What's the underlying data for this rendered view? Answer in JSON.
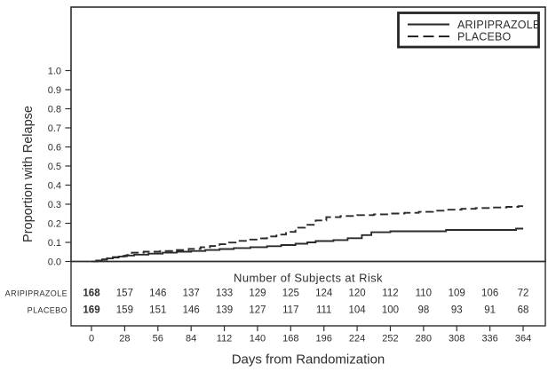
{
  "chart_data": {
    "type": "line",
    "subtype": "kaplan-meier-step",
    "title": "",
    "xlabel": "Days from Randomization",
    "ylabel": "Proportion with Relapse",
    "xlim": [
      0,
      364
    ],
    "ylim": [
      0.0,
      1.0
    ],
    "grid": false,
    "line_color": "#2b2b2b",
    "x_ticks": [
      0,
      28,
      56,
      84,
      112,
      140,
      168,
      196,
      224,
      252,
      280,
      308,
      336,
      364
    ],
    "y_ticks": [
      "1.0",
      "0.9",
      "0.8",
      "0.7",
      "0.6",
      "0.5",
      "0.4",
      "0.3",
      "0.2",
      "0.1",
      "0.0"
    ],
    "legend": {
      "position": "top-right",
      "entries": [
        "ARIPIPRAZOLE",
        "PLACEBO"
      ]
    },
    "series": [
      {
        "name": "ARIPIPRAZOLE",
        "line_style": "solid",
        "color": "#2b2b2b",
        "points": [
          [
            0,
            0
          ],
          [
            5,
            0.005
          ],
          [
            9,
            0.01
          ],
          [
            13,
            0.016
          ],
          [
            18,
            0.021
          ],
          [
            23,
            0.026
          ],
          [
            28,
            0.031
          ],
          [
            36,
            0.036
          ],
          [
            48,
            0.041
          ],
          [
            60,
            0.046
          ],
          [
            72,
            0.051
          ],
          [
            84,
            0.055
          ],
          [
            96,
            0.06
          ],
          [
            108,
            0.065
          ],
          [
            120,
            0.07
          ],
          [
            134,
            0.075
          ],
          [
            148,
            0.08
          ],
          [
            160,
            0.086
          ],
          [
            172,
            0.093
          ],
          [
            182,
            0.1
          ],
          [
            189,
            0.107
          ],
          [
            204,
            0.112
          ],
          [
            216,
            0.122
          ],
          [
            228,
            0.138
          ],
          [
            236,
            0.153
          ],
          [
            252,
            0.158
          ],
          [
            299,
            0.165
          ],
          [
            358,
            0.172
          ]
        ]
      },
      {
        "name": "PLACEBO",
        "line_style": "dashed",
        "color": "#2b2b2b",
        "points": [
          [
            0,
            0
          ],
          [
            4,
            0.005
          ],
          [
            8,
            0.011
          ],
          [
            13,
            0.017
          ],
          [
            18,
            0.023
          ],
          [
            24,
            0.028
          ],
          [
            30,
            0.034
          ],
          [
            34,
            0.046
          ],
          [
            44,
            0.051
          ],
          [
            58,
            0.055
          ],
          [
            72,
            0.06
          ],
          [
            82,
            0.066
          ],
          [
            92,
            0.075
          ],
          [
            100,
            0.081
          ],
          [
            108,
            0.09
          ],
          [
            116,
            0.099
          ],
          [
            124,
            0.108
          ],
          [
            132,
            0.115
          ],
          [
            140,
            0.121
          ],
          [
            148,
            0.131
          ],
          [
            156,
            0.141
          ],
          [
            164,
            0.155
          ],
          [
            172,
            0.177
          ],
          [
            180,
            0.192
          ],
          [
            189,
            0.215
          ],
          [
            198,
            0.232
          ],
          [
            210,
            0.238
          ],
          [
            224,
            0.243
          ],
          [
            238,
            0.247
          ],
          [
            252,
            0.251
          ],
          [
            264,
            0.255
          ],
          [
            276,
            0.26
          ],
          [
            288,
            0.266
          ],
          [
            300,
            0.271
          ],
          [
            312,
            0.276
          ],
          [
            324,
            0.28
          ],
          [
            336,
            0.283
          ],
          [
            350,
            0.286
          ],
          [
            360,
            0.29
          ]
        ]
      }
    ],
    "risk_table": {
      "title": "Number of Subjects at Risk",
      "rows": [
        {
          "label": "ARIPIPRAZOLE",
          "values": [
            168,
            157,
            146,
            137,
            133,
            129,
            125,
            124,
            120,
            112,
            110,
            109,
            106,
            72
          ]
        },
        {
          "label": "PLACEBO",
          "values": [
            169,
            159,
            151,
            146,
            139,
            127,
            117,
            111,
            104,
            100,
            98,
            93,
            91,
            68
          ]
        }
      ],
      "first_column_bold": true
    }
  }
}
